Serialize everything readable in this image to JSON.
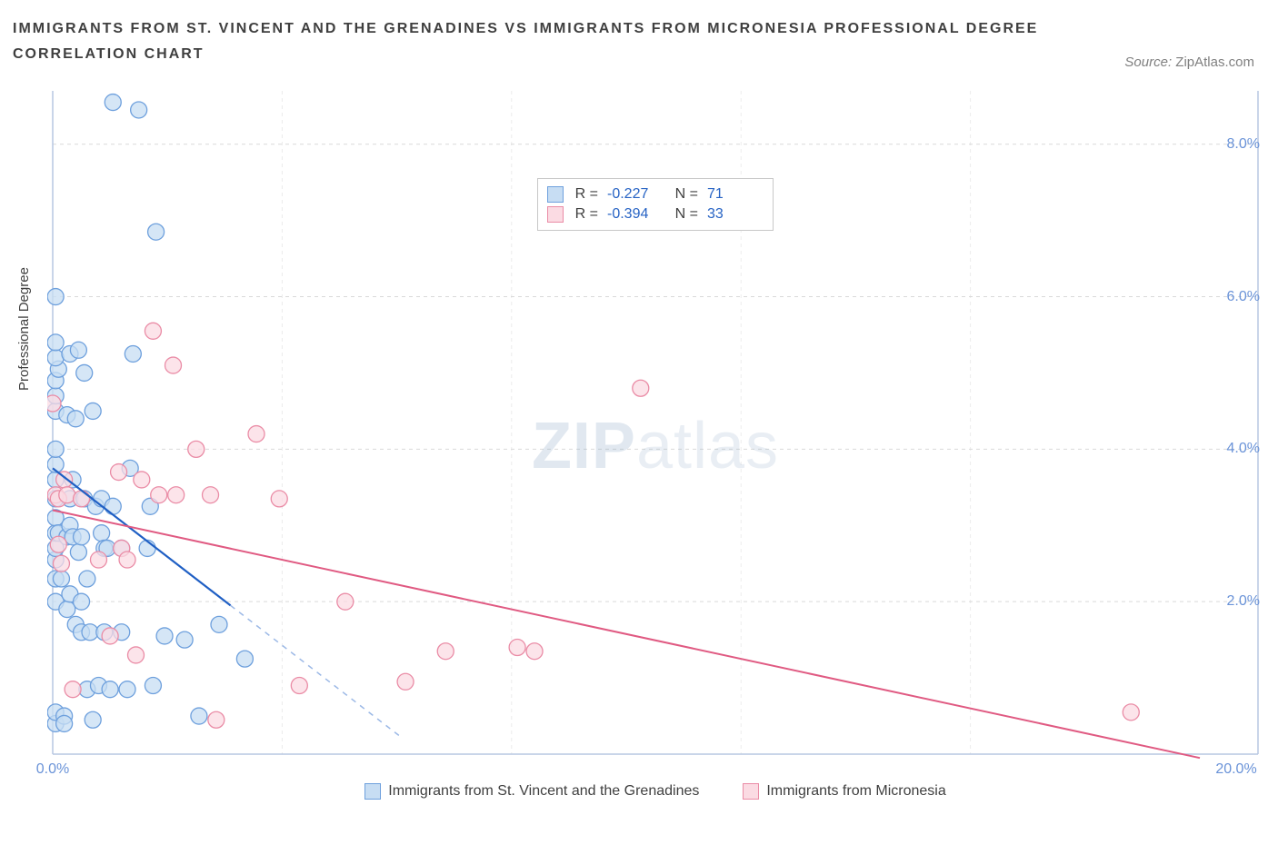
{
  "title": "IMMIGRANTS FROM ST. VINCENT AND THE GRENADINES VS IMMIGRANTS FROM MICRONESIA PROFESSIONAL DEGREE CORRELATION CHART",
  "source": {
    "label": "Source:",
    "name": "ZipAtlas.com"
  },
  "watermark": {
    "bold": "ZIP",
    "light": "atlas"
  },
  "chart": {
    "type": "scatter",
    "x_axis": {
      "min": 0.0,
      "max": 20.0,
      "tick_label_min": "0.0%",
      "tick_label_max": "20.0%"
    },
    "y_axis": {
      "label": "Professional Degree",
      "min": 0.0,
      "max": 8.7,
      "ticks": [
        2.0,
        4.0,
        6.0,
        8.0
      ],
      "tick_labels": [
        "2.0%",
        "4.0%",
        "6.0%",
        "8.0%"
      ]
    },
    "grid_color": "#d9d9d9",
    "axis_color": "#b7c7e2",
    "background_color": "#ffffff",
    "series": [
      {
        "name": "Immigrants from St. Vincent and the Grenadines",
        "marker_fill": "#c7ddf3",
        "marker_stroke": "#6ea0dd",
        "marker_radius": 9,
        "fill_opacity": 0.75,
        "trend_line": {
          "color": "#1f5fc4",
          "width": 2.2,
          "x1": 0.0,
          "y1": 3.75,
          "x2": 3.1,
          "y2": 1.95,
          "dash_color": "#9bb8e6",
          "dash_x2": 6.1
        },
        "R": "-0.227",
        "N": "71",
        "points": [
          [
            0.05,
            0.4
          ],
          [
            0.05,
            0.55
          ],
          [
            0.05,
            2.0
          ],
          [
            0.05,
            2.3
          ],
          [
            0.05,
            2.55
          ],
          [
            0.05,
            2.7
          ],
          [
            0.05,
            2.9
          ],
          [
            0.05,
            3.1
          ],
          [
            0.05,
            3.35
          ],
          [
            0.05,
            3.6
          ],
          [
            0.05,
            3.8
          ],
          [
            0.05,
            4.0
          ],
          [
            0.05,
            4.5
          ],
          [
            0.05,
            4.7
          ],
          [
            0.05,
            4.9
          ],
          [
            0.1,
            5.05
          ],
          [
            0.05,
            5.2
          ],
          [
            0.05,
            5.4
          ],
          [
            0.05,
            6.0
          ],
          [
            0.1,
            2.9
          ],
          [
            0.15,
            2.3
          ],
          [
            0.2,
            0.5
          ],
          [
            0.2,
            0.4
          ],
          [
            0.25,
            1.9
          ],
          [
            0.25,
            2.85
          ],
          [
            0.25,
            4.45
          ],
          [
            0.3,
            2.1
          ],
          [
            0.3,
            3.0
          ],
          [
            0.3,
            3.35
          ],
          [
            0.3,
            5.25
          ],
          [
            0.35,
            2.85
          ],
          [
            0.35,
            3.6
          ],
          [
            0.4,
            1.7
          ],
          [
            0.4,
            4.4
          ],
          [
            0.45,
            2.65
          ],
          [
            0.45,
            5.3
          ],
          [
            0.5,
            1.6
          ],
          [
            0.5,
            2.0
          ],
          [
            0.5,
            2.85
          ],
          [
            0.55,
            3.35
          ],
          [
            0.55,
            5.0
          ],
          [
            0.6,
            2.3
          ],
          [
            0.6,
            0.85
          ],
          [
            0.65,
            1.6
          ],
          [
            0.7,
            4.5
          ],
          [
            0.7,
            0.45
          ],
          [
            0.75,
            3.25
          ],
          [
            0.8,
            0.9
          ],
          [
            0.85,
            2.9
          ],
          [
            0.85,
            3.35
          ],
          [
            0.9,
            1.6
          ],
          [
            0.9,
            2.7
          ],
          [
            0.95,
            2.7
          ],
          [
            1.0,
            0.85
          ],
          [
            1.05,
            8.55
          ],
          [
            1.2,
            1.6
          ],
          [
            1.2,
            2.7
          ],
          [
            1.3,
            0.85
          ],
          [
            1.35,
            3.75
          ],
          [
            1.4,
            5.25
          ],
          [
            1.5,
            8.45
          ],
          [
            1.65,
            2.7
          ],
          [
            1.7,
            3.25
          ],
          [
            1.75,
            0.9
          ],
          [
            1.8,
            6.85
          ],
          [
            1.95,
            1.55
          ],
          [
            2.3,
            1.5
          ],
          [
            2.55,
            0.5
          ],
          [
            2.9,
            1.7
          ],
          [
            3.35,
            1.25
          ],
          [
            1.05,
            3.25
          ]
        ]
      },
      {
        "name": "Immigrants from Micronesia",
        "marker_fill": "#fbdbe3",
        "marker_stroke": "#ea8ca6",
        "marker_radius": 9,
        "fill_opacity": 0.75,
        "trend_line": {
          "color": "#e05a82",
          "width": 2.0,
          "x1": 0.0,
          "y1": 3.2,
          "x2": 20.0,
          "y2": -0.05
        },
        "R": "-0.394",
        "N": "33",
        "points": [
          [
            0.0,
            4.6
          ],
          [
            0.05,
            3.4
          ],
          [
            0.1,
            2.75
          ],
          [
            0.1,
            3.35
          ],
          [
            0.15,
            2.5
          ],
          [
            0.2,
            3.6
          ],
          [
            0.25,
            3.4
          ],
          [
            0.35,
            0.85
          ],
          [
            0.5,
            3.35
          ],
          [
            0.8,
            2.55
          ],
          [
            1.0,
            1.55
          ],
          [
            1.15,
            3.7
          ],
          [
            1.2,
            2.7
          ],
          [
            1.3,
            2.55
          ],
          [
            1.45,
            1.3
          ],
          [
            1.55,
            3.6
          ],
          [
            1.75,
            5.55
          ],
          [
            1.85,
            3.4
          ],
          [
            2.1,
            5.1
          ],
          [
            2.15,
            3.4
          ],
          [
            2.5,
            4.0
          ],
          [
            2.75,
            3.4
          ],
          [
            2.85,
            0.45
          ],
          [
            3.55,
            4.2
          ],
          [
            3.95,
            3.35
          ],
          [
            4.3,
            0.9
          ],
          [
            5.1,
            2.0
          ],
          [
            6.15,
            0.95
          ],
          [
            6.85,
            1.35
          ],
          [
            8.1,
            1.4
          ],
          [
            8.4,
            1.35
          ],
          [
            10.25,
            4.8
          ],
          [
            18.8,
            0.55
          ]
        ]
      }
    ]
  },
  "legend_top": {
    "R_label": "R =",
    "N_label": "N ="
  },
  "legend_bottom": {
    "series1": "Immigrants from St. Vincent and the Grenadines",
    "series2": "Immigrants from Micronesia"
  }
}
